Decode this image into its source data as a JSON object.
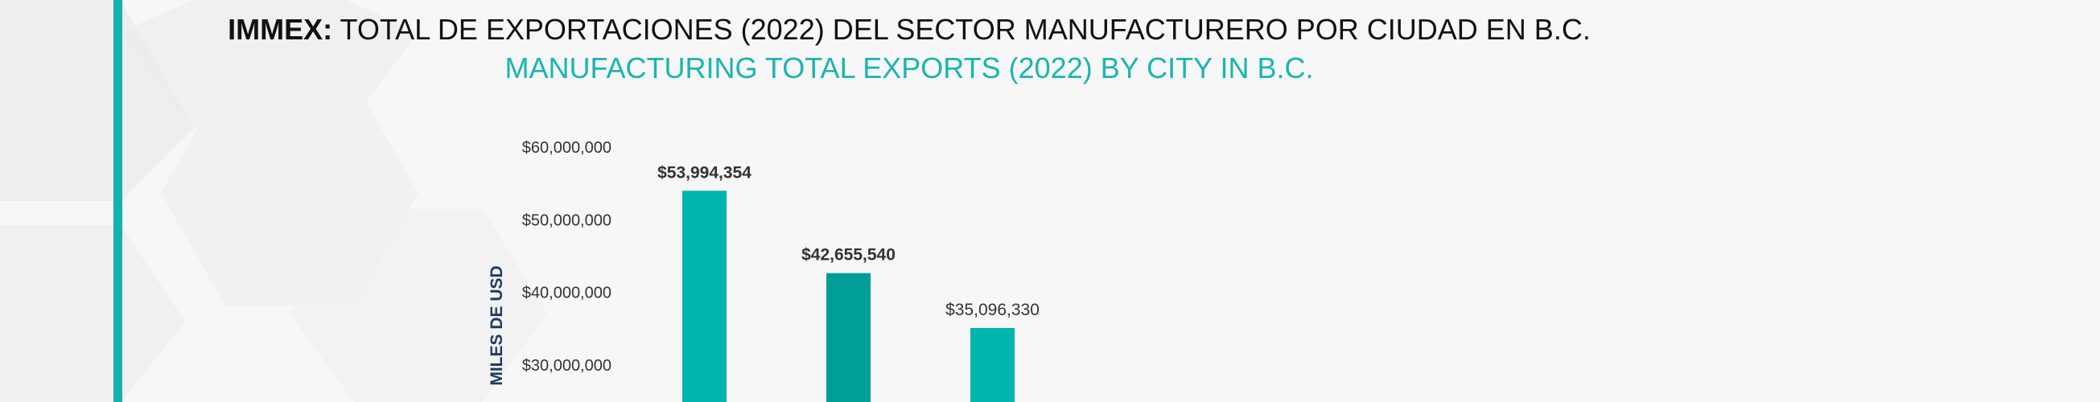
{
  "colors": {
    "accent": "#12b3ad",
    "bar_primary": "#00b5ad",
    "bar_alt": "#009e97",
    "title_dark": "#111111",
    "title_teal": "#1ab5b0",
    "ylabel": "#1f3b63"
  },
  "title": {
    "brand": "IMMEX:",
    "line1_rest": " TOTAL DE EXPORTACIONES (2022) DEL SECTOR MANUFACTURERO POR CIUDAD EN B.C.",
    "line2": "MANUFACTURING TOTAL EXPORTS (2022) BY CITY IN B.C."
  },
  "chart_data": {
    "type": "bar",
    "title": "IMMEX: TOTAL DE EXPORTACIONES (2022) DEL SECTOR MANUFACTURERO POR CIUDAD EN B.C.",
    "subtitle": "MANUFACTURING TOTAL EXPORTS (2022) BY CITY IN B.C.",
    "xlabel": "",
    "ylabel": "MILES DE USD",
    "ylim_visible": [
      30000000,
      60000000
    ],
    "grid": false,
    "legend": "none",
    "y_ticks": [
      {
        "value": 60000000,
        "label": "$60,000,000"
      },
      {
        "value": 50000000,
        "label": "$50,000,000"
      },
      {
        "value": 40000000,
        "label": "$40,000,000"
      },
      {
        "value": 30000000,
        "label": "$30,000,000"
      }
    ],
    "categories": [
      "",
      "",
      ""
    ],
    "values": [
      53994354,
      42655540,
      35096330
    ],
    "value_labels": [
      "$53,994,354",
      "$42,655,540",
      "$35,096,330"
    ]
  }
}
